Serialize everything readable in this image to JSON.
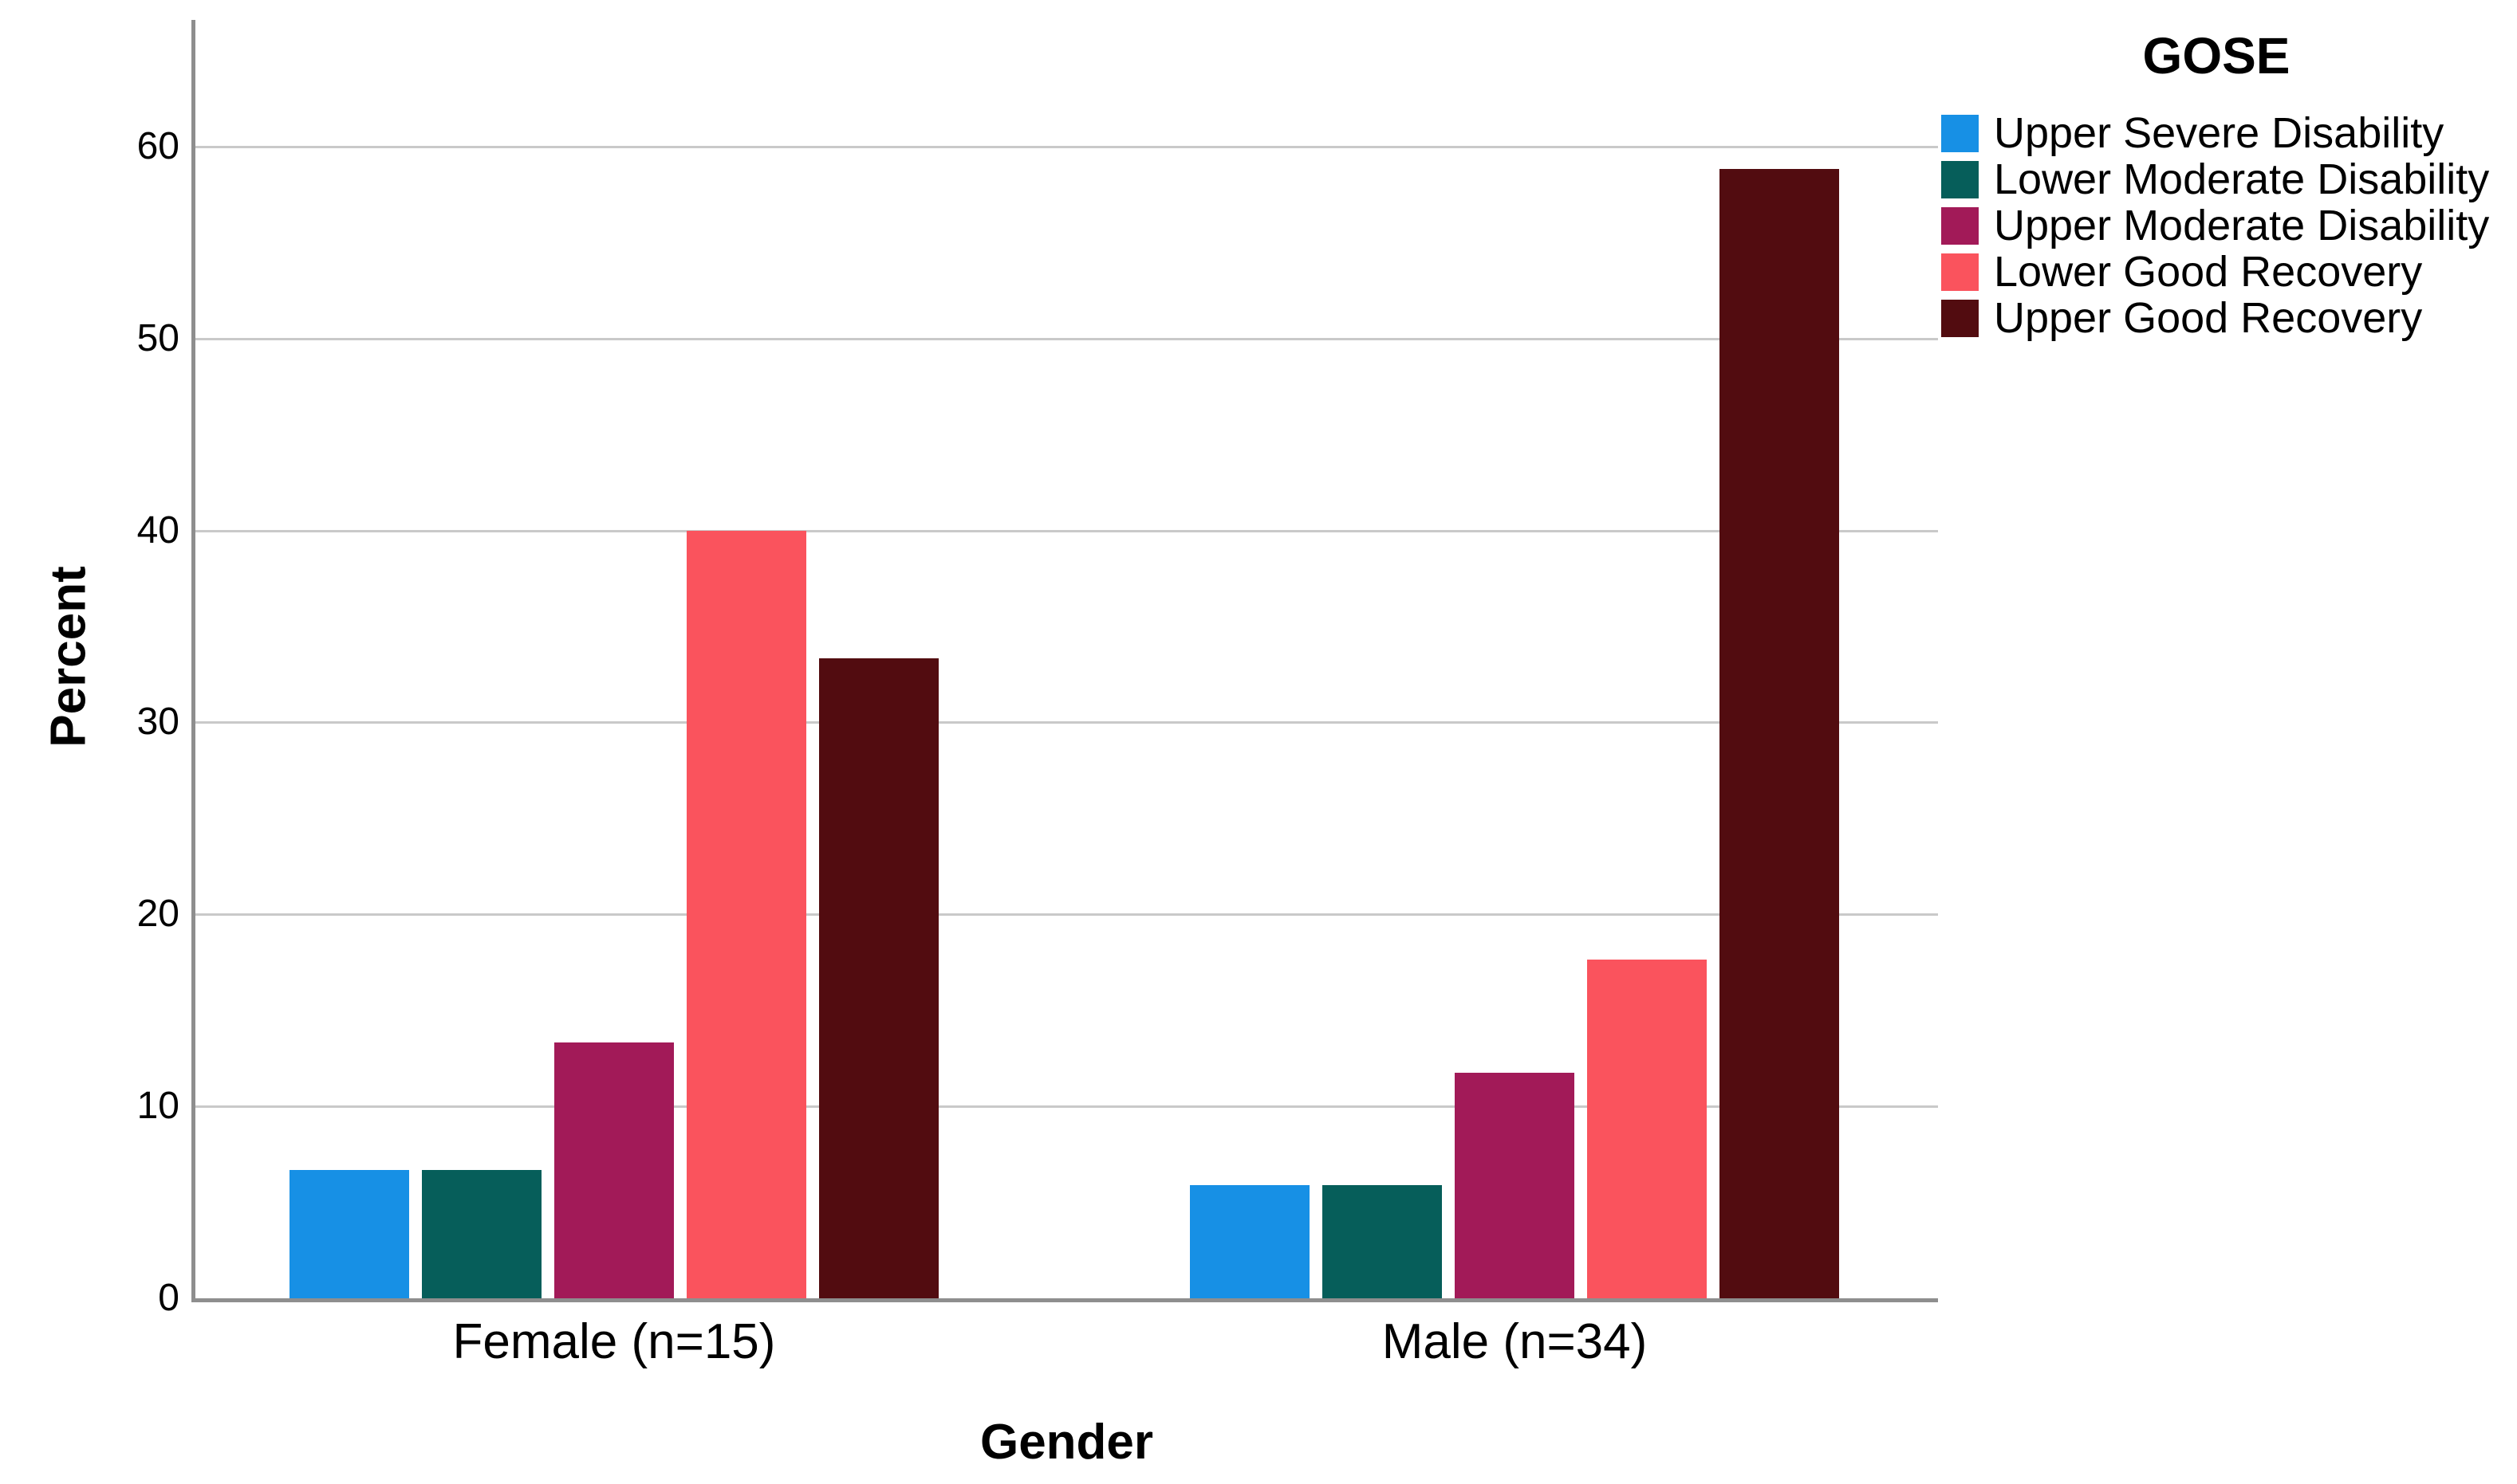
{
  "figure": {
    "background": "#FFFFFF",
    "text_color": "#000000"
  },
  "chart_data": {
    "type": "bar",
    "title": "",
    "xlabel": "Gender",
    "ylabel": "Percent",
    "legend_title": "GOSE",
    "legend_position": "right",
    "grid": true,
    "categories": [
      "Female (n=15)",
      "Male (n=34)"
    ],
    "series": [
      {
        "name": "Upper Severe Disability",
        "color": "#1790E5",
        "values": [
          6.67,
          5.88
        ]
      },
      {
        "name": "Lower Moderate Disability",
        "color": "#065E5A",
        "values": [
          6.67,
          5.88
        ]
      },
      {
        "name": "Upper Moderate Disability",
        "color": "#A21A58",
        "values": [
          13.33,
          11.76
        ]
      },
      {
        "name": "Lower Good Recovery",
        "color": "#FA535D",
        "values": [
          40.0,
          17.65
        ]
      },
      {
        "name": "Upper Good Recovery",
        "color": "#520C10",
        "values": [
          33.33,
          58.82
        ]
      }
    ],
    "yticks": [
      0,
      10,
      20,
      30,
      40,
      50,
      60
    ],
    "ylim": [
      0,
      66.6
    ],
    "axis_color": "#8E8E8E",
    "gridline_color": "#C9C9C9"
  }
}
